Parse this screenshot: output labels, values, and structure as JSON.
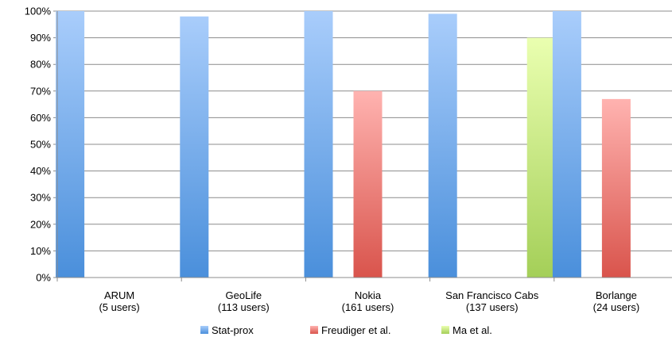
{
  "chart_data": {
    "type": "bar",
    "categories": [
      [
        "ARUM",
        "(5 users)"
      ],
      [
        "GeoLife",
        "(113 users)"
      ],
      [
        "Nokia",
        "(161 users)"
      ],
      [
        "San Francisco Cabs",
        "(137 users)"
      ],
      [
        "Borlange",
        "(24 users)"
      ]
    ],
    "series": [
      {
        "name": "Stat-prox",
        "values": [
          100,
          98,
          100,
          99,
          100
        ],
        "color_top": "#a9cdfb",
        "color_bottom": "#4a8fdb"
      },
      {
        "name": "Freudiger et al.",
        "values": [
          null,
          null,
          70,
          null,
          67
        ],
        "color_top": "#ffb3b0",
        "color_bottom": "#d9544c"
      },
      {
        "name": "Ma et al.",
        "values": [
          null,
          null,
          null,
          90,
          null
        ],
        "color_top": "#eaffb0",
        "color_bottom": "#a4cf58"
      }
    ],
    "yticks": [
      "0%",
      "10%",
      "20%",
      "30%",
      "40%",
      "50%",
      "60%",
      "70%",
      "80%",
      "90%",
      "100%"
    ],
    "ylim": [
      0,
      100
    ],
    "grid": true,
    "legend_position": "bottom"
  }
}
